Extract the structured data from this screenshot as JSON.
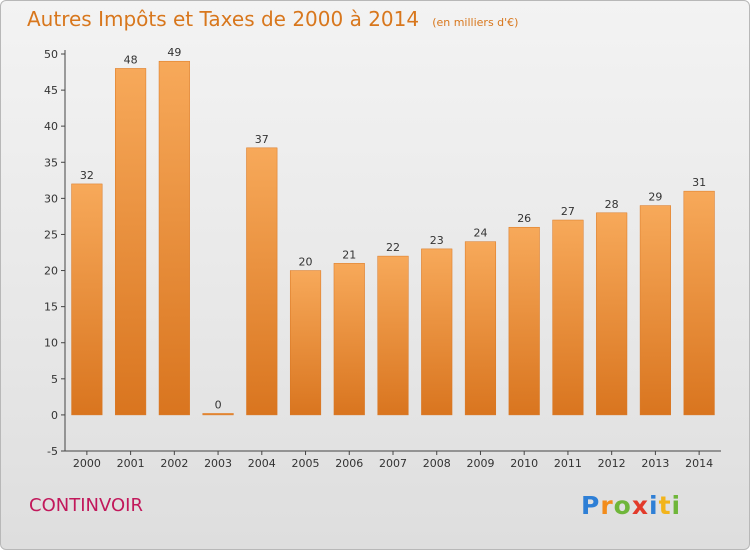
{
  "chart_data": {
    "type": "bar",
    "title": "Autres Impôts et Taxes de 2000 à 2014",
    "unit_note": "(en milliers d'€)",
    "categories": [
      "2000",
      "2001",
      "2002",
      "2003",
      "2004",
      "2005",
      "2006",
      "2007",
      "2008",
      "2009",
      "2010",
      "2011",
      "2012",
      "2013",
      "2014"
    ],
    "values": [
      32,
      48,
      49,
      0,
      37,
      20,
      21,
      22,
      23,
      24,
      26,
      27,
      28,
      29,
      31
    ],
    "ylim": [
      -5,
      50
    ],
    "yticks": [
      -5,
      0,
      5,
      10,
      15,
      20,
      25,
      30,
      35,
      40,
      45,
      50
    ],
    "xlabel": "",
    "ylabel": "",
    "grid": false,
    "colors": {
      "bar_light": "#f7a95a",
      "bar_dark": "#d9751f",
      "title": "#d8771d"
    }
  },
  "footer": {
    "commune": "CONTINVOIR",
    "logo_letters": [
      "P",
      "r",
      "o",
      "x",
      "i",
      "t",
      "i"
    ],
    "logo_colors": [
      "#2e7fd6",
      "#f28c1b",
      "#6fb63a",
      "#e23a2a",
      "#2e7fd6",
      "#f2b41b",
      "#6fb63a"
    ]
  }
}
